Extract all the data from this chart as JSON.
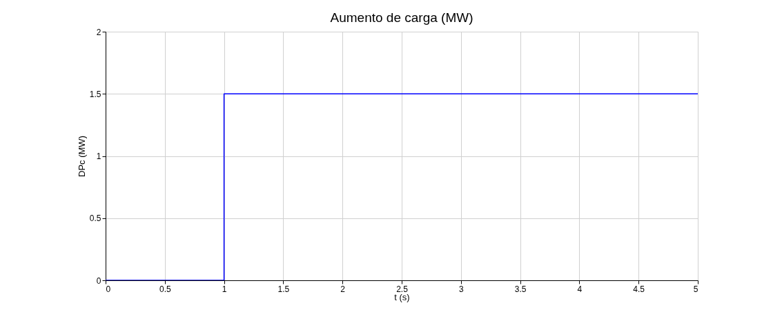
{
  "chart_data": {
    "type": "step",
    "title": "Aumento de carga (MW)",
    "xlabel": "t (s)",
    "ylabel": "DPc (MW)",
    "x": [
      0,
      1,
      5
    ],
    "series": [
      {
        "color": "#0000ff",
        "values": [
          0,
          1.5,
          1.5
        ]
      }
    ],
    "xlim": [
      0,
      5
    ],
    "xticks": [
      0,
      0.5,
      1,
      1.5,
      2,
      2.5,
      3,
      3.5,
      4,
      4.5,
      5
    ],
    "ylim": [
      0,
      2
    ],
    "yticks": [
      0,
      0.5,
      1,
      1.5,
      2
    ],
    "grid": true
  }
}
